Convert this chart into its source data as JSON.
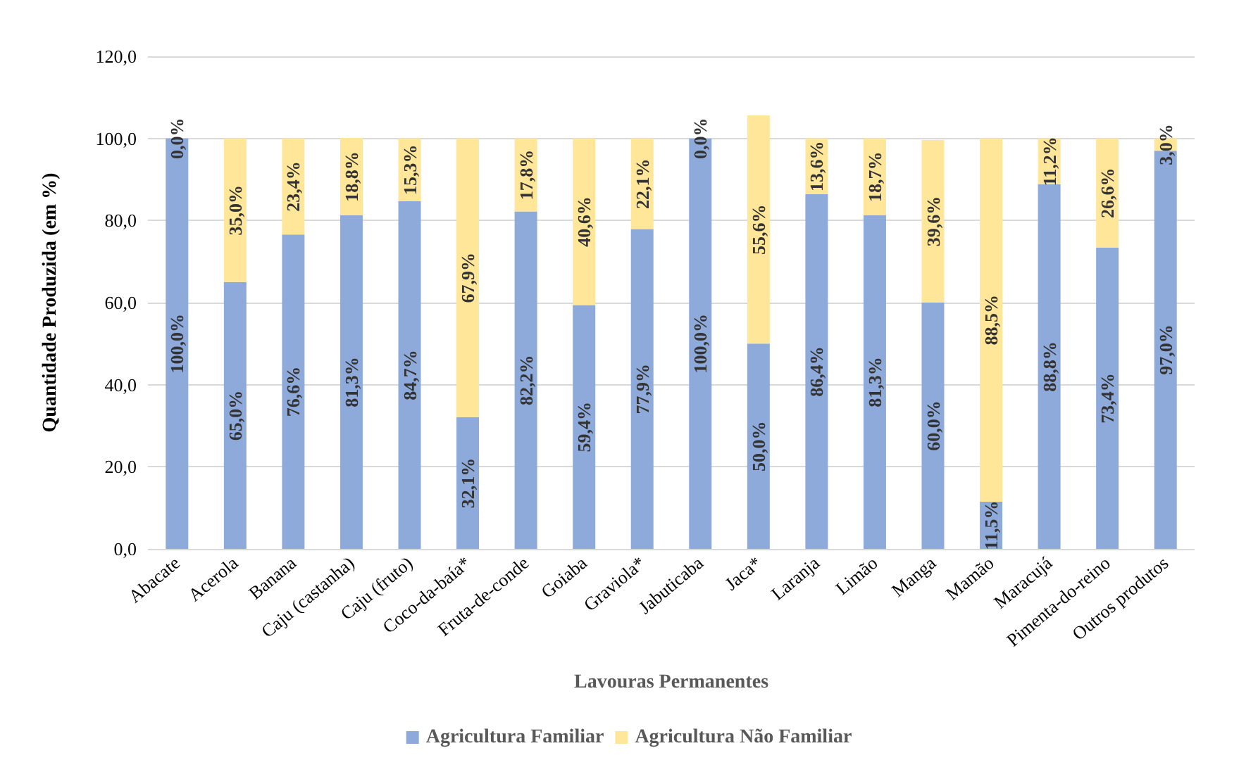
{
  "chart_data": {
    "type": "bar",
    "stacked": true,
    "xlabel": "Lavouras Permanentes",
    "ylabel": "Quantidade Produzida (em %)",
    "categories": [
      "Abacate",
      "Acerola",
      "Banana",
      "Caju (castanha)",
      "Caju (fruto)",
      "Coco-da-baía*",
      "Fruta-de-conde",
      "Goiaba",
      "Graviola*",
      "Jabuticaba",
      "Jaca*",
      "Laranja",
      "Limão",
      "Manga",
      "Mamão",
      "Maracujá",
      "Pimenta-do-reino",
      "Outros produtos"
    ],
    "series": [
      {
        "name": "Agricultura Familiar",
        "color": "#8eaadb",
        "values": [
          100.0,
          65.0,
          76.6,
          81.3,
          84.7,
          32.1,
          82.2,
          59.4,
          77.9,
          100.0,
          50.0,
          86.4,
          81.3,
          60.0,
          11.5,
          88.8,
          73.4,
          97.0
        ],
        "value_labels": [
          "100,0%",
          "65,0%",
          "76,6%",
          "81,3%",
          "84,7%",
          "32,1%",
          "82,2%",
          "59,4%",
          "77,9%",
          "100,0%",
          "50,0%",
          "86,4%",
          "81,3%",
          "60,0%",
          "11,5%",
          "88,8%",
          "73,4%",
          "97,0%"
        ]
      },
      {
        "name": "Agricultura Não Familiar",
        "color": "#ffe699",
        "values": [
          0.0,
          35.0,
          23.4,
          18.8,
          15.3,
          67.9,
          17.8,
          40.6,
          22.1,
          0.0,
          55.6,
          13.6,
          18.7,
          39.6,
          88.5,
          11.2,
          26.6,
          3.0
        ],
        "value_labels": [
          "0,0%",
          "35,0%",
          "23,4%",
          "18,8%",
          "15,3%",
          "67,9%",
          "17,8%",
          "40,6%",
          "22,1%",
          "0,0%",
          "55,6%",
          "13,6%",
          "18,7%",
          "39,6%",
          "88,5%",
          "11,2%",
          "26,6%",
          "3,0%"
        ]
      }
    ],
    "ylim": [
      0,
      120
    ],
    "yticks": [
      {
        "value": 0,
        "label": "0,0"
      },
      {
        "value": 20,
        "label": "20,0"
      },
      {
        "value": 40,
        "label": "40,0"
      },
      {
        "value": 60,
        "label": "60,0"
      },
      {
        "value": 80,
        "label": "80,0"
      },
      {
        "value": 100,
        "label": "100,0"
      },
      {
        "value": 120,
        "label": "120,0"
      }
    ],
    "grid": "y",
    "legend": "bottom"
  }
}
